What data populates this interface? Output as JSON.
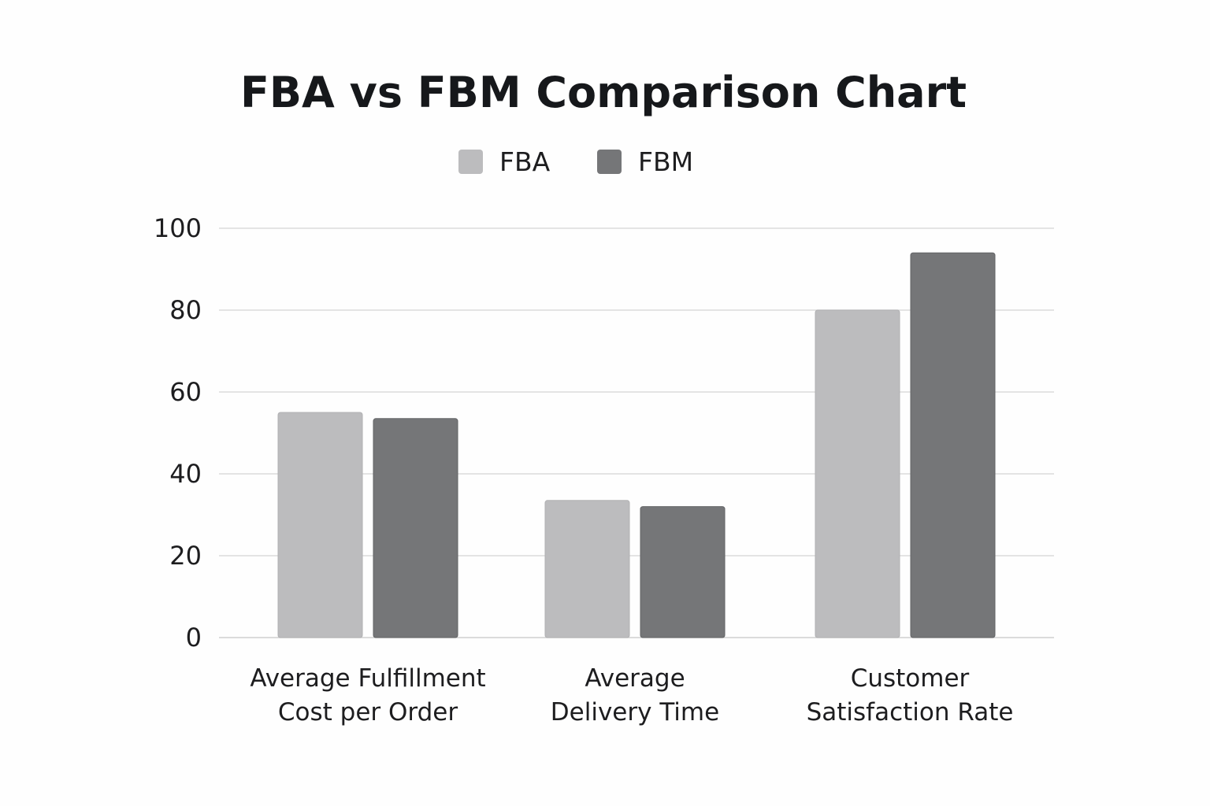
{
  "chart_data": {
    "type": "bar",
    "title": "FBA vs FBM Comparison Chart",
    "categories": [
      [
        "Average Fulfillment",
        "Cost per Order"
      ],
      [
        "Average",
        "Delivery Time"
      ],
      [
        "Customer",
        "Satisfaction Rate"
      ]
    ],
    "series": [
      {
        "name": "FBA",
        "color": "#bcbcbe",
        "values": [
          55,
          33.5,
          80
        ]
      },
      {
        "name": "FBM",
        "color": "#757678",
        "values": [
          53.5,
          32,
          94
        ]
      }
    ],
    "ylim": [
      0,
      100
    ],
    "yticks": [
      0,
      20,
      40,
      60,
      80,
      100
    ],
    "grid": true,
    "legend_position": "top-center",
    "xlabel": "",
    "ylabel": ""
  }
}
